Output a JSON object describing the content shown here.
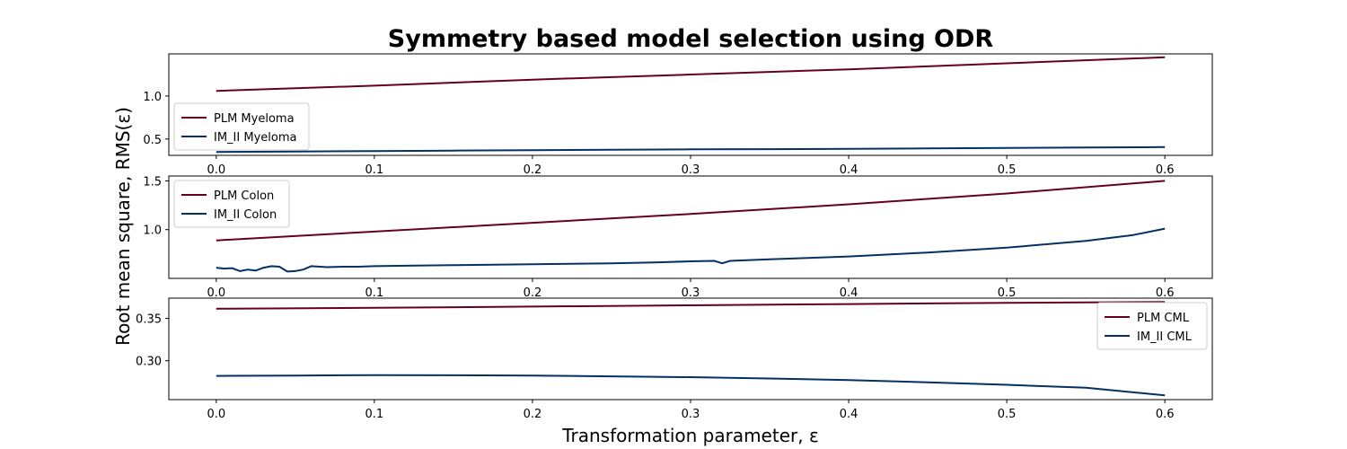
{
  "chart_data": {
    "type": "line",
    "title": "Symmetry based model selection using ODR",
    "xlabel": "Transformation parameter, ε",
    "ylabel": "Root mean square, RMS(ε)",
    "colors": {
      "PLM": "#67001f",
      "IM_II": "#053061"
    },
    "grid": false,
    "subplots": [
      {
        "xlim": [
          -0.03,
          0.63
        ],
        "ylim": [
          0.31,
          1.49
        ],
        "xticks": [
          0.0,
          0.1,
          0.2,
          0.3,
          0.4,
          0.5,
          0.6
        ],
        "xtick_labels": [
          "0.0",
          "0.1",
          "0.2",
          "0.3",
          "0.4",
          "0.5",
          "0.6"
        ],
        "yticks": [
          0.5,
          1.0
        ],
        "ytick_labels": [
          "0.5",
          "1.0"
        ],
        "legend_position": "lower-left",
        "series": [
          {
            "name": "PLM Myeloma",
            "model": "PLM",
            "x": [
              0.0,
              0.1,
              0.2,
              0.3,
              0.4,
              0.5,
              0.6
            ],
            "y": [
              1.06,
              1.12,
              1.19,
              1.25,
              1.31,
              1.38,
              1.45
            ]
          },
          {
            "name": "IM_II Myeloma",
            "model": "IM_II",
            "x": [
              0.0,
              0.05,
              0.1,
              0.15,
              0.2,
              0.25,
              0.3,
              0.35,
              0.4,
              0.45,
              0.5,
              0.55,
              0.6
            ],
            "y": [
              0.35,
              0.355,
              0.36,
              0.365,
              0.37,
              0.375,
              0.38,
              0.382,
              0.386,
              0.39,
              0.396,
              0.401,
              0.406
            ]
          }
        ]
      },
      {
        "xlim": [
          -0.03,
          0.63
        ],
        "ylim": [
          0.5,
          1.55
        ],
        "xticks": [
          0.0,
          0.1,
          0.2,
          0.3,
          0.4,
          0.5,
          0.6
        ],
        "xtick_labels": [
          "0.0",
          "0.1",
          "0.2",
          "0.3",
          "0.4",
          "0.5",
          "0.6"
        ],
        "yticks": [
          1.0,
          1.5
        ],
        "ytick_labels": [
          "1.0",
          "1.5"
        ],
        "legend_position": "upper-left",
        "series": [
          {
            "name": "PLM Colon",
            "model": "PLM",
            "x": [
              0.0,
              0.1,
              0.2,
              0.3,
              0.4,
              0.5,
              0.6
            ],
            "y": [
              0.89,
              0.98,
              1.07,
              1.16,
              1.26,
              1.37,
              1.5
            ]
          },
          {
            "name": "IM_II Colon",
            "model": "IM_II",
            "x": [
              0.0,
              0.005,
              0.01,
              0.015,
              0.02,
              0.025,
              0.03,
              0.035,
              0.04,
              0.045,
              0.05,
              0.055,
              0.06,
              0.07,
              0.08,
              0.09,
              0.1,
              0.12,
              0.15,
              0.2,
              0.25,
              0.28,
              0.3,
              0.315,
              0.32,
              0.325,
              0.35,
              0.4,
              0.45,
              0.5,
              0.55,
              0.58,
              0.6
            ],
            "y": [
              0.61,
              0.6,
              0.605,
              0.575,
              0.59,
              0.58,
              0.61,
              0.625,
              0.62,
              0.57,
              0.575,
              0.59,
              0.625,
              0.615,
              0.62,
              0.62,
              0.625,
              0.63,
              0.635,
              0.645,
              0.655,
              0.665,
              0.675,
              0.68,
              0.655,
              0.68,
              0.695,
              0.725,
              0.765,
              0.815,
              0.885,
              0.945,
              1.01
            ]
          }
        ]
      },
      {
        "xlim": [
          -0.03,
          0.63
        ],
        "ylim": [
          0.254,
          0.374
        ],
        "xticks": [
          0.0,
          0.1,
          0.2,
          0.3,
          0.4,
          0.5,
          0.6
        ],
        "xtick_labels": [
          "0.0",
          "0.1",
          "0.2",
          "0.3",
          "0.4",
          "0.5",
          "0.6"
        ],
        "yticks": [
          0.3,
          0.35
        ],
        "ytick_labels": [
          "0.30",
          "0.35"
        ],
        "legend_position": "upper-right",
        "series": [
          {
            "name": "PLM CML",
            "model": "PLM",
            "x": [
              0.0,
              0.1,
              0.2,
              0.3,
              0.4,
              0.5,
              0.6
            ],
            "y": [
              0.3615,
              0.3625,
              0.364,
              0.3655,
              0.367,
              0.3685,
              0.3695
            ]
          },
          {
            "name": "IM_II CML",
            "model": "IM_II",
            "x": [
              0.0,
              0.05,
              0.1,
              0.15,
              0.2,
              0.25,
              0.3,
              0.35,
              0.4,
              0.45,
              0.5,
              0.55,
              0.6
            ],
            "y": [
              0.282,
              0.2825,
              0.283,
              0.2828,
              0.2825,
              0.2815,
              0.2805,
              0.279,
              0.277,
              0.2745,
              0.2715,
              0.268,
              0.259
            ]
          }
        ]
      }
    ]
  }
}
